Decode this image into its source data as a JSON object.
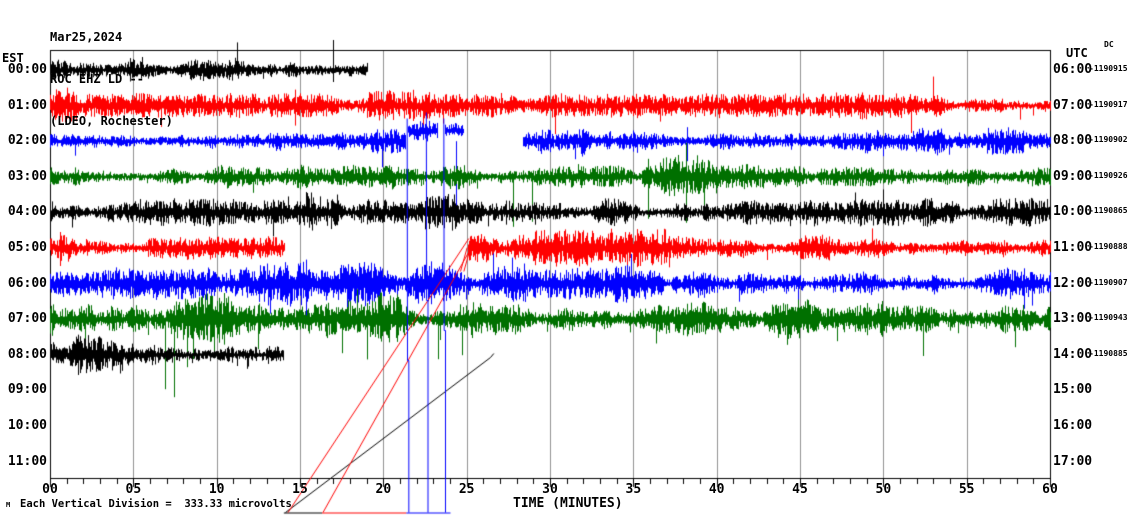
{
  "chart_data": {
    "type": "line",
    "subtype": "helicorder-seismogram",
    "title_lines": [
      "Mar25,2024",
      "ROC EHZ LD --",
      "(LDEO, Rochester)"
    ],
    "xlabel": "TIME (MINUTES)",
    "x_range_minutes": [
      0,
      60
    ],
    "x_major_tick_interval": 5,
    "x_minor_tick_interval": 1,
    "x_tick_labels": [
      "00",
      "05",
      "10",
      "15",
      "20",
      "25",
      "30",
      "35",
      "40",
      "45",
      "50",
      "55",
      "60"
    ],
    "left_axis": {
      "header": "EST"
    },
    "right_axis": {
      "header": "UTC",
      "sub_header": "DC"
    },
    "scale_note": "Each Vertical Division =  333.33 microvolts",
    "footer_marker": "M",
    "colors": {
      "grid": "#909090",
      "axis": "#000000",
      "background": "#ffffff",
      "trace_cycle": [
        "#000000",
        "#ff0000",
        "#0000ff",
        "#007000"
      ]
    },
    "rows": [
      {
        "est": "00:00",
        "utc": "06:00",
        "dc": "-1190915",
        "color": "#000000",
        "segments": [
          {
            "s": 0,
            "e": 19.0,
            "amp": 8,
            "sp": 0.01,
            "spm": 2.0
          }
        ],
        "bursts": [
          {
            "s": 0,
            "e": 1.2,
            "m": 1.3
          }
        ],
        "spikes": [
          {
            "m": 16.95,
            "up": 30,
            "down": 12
          },
          {
            "m": 5.5,
            "up": 13,
            "down": 6
          },
          {
            "m": 9.2,
            "up": 6,
            "down": 11
          }
        ]
      },
      {
        "est": "01:00",
        "utc": "07:00",
        "dc": "-1190917",
        "color": "#ff0000",
        "segments": [
          {
            "s": 0,
            "e": 60,
            "amp": 7,
            "sp": 0.012,
            "spm": 2.4
          }
        ],
        "bursts": [
          {
            "s": 0,
            "e": 1.6,
            "m": 1.6
          },
          {
            "s": 19,
            "e": 24,
            "m": 1.25
          },
          {
            "s": 47,
            "e": 49,
            "m": 1.2
          }
        ],
        "spikes": [
          {
            "m": 1.0,
            "up": 18,
            "down": 8
          },
          {
            "m": 14.7,
            "up": 16,
            "down": 20
          },
          {
            "m": 22.4,
            "down": 24
          },
          {
            "m": 23.6,
            "down": 18
          },
          {
            "m": 36.6,
            "down": 16
          },
          {
            "m": 58.2,
            "down": 14
          }
        ]
      },
      {
        "est": "02:00",
        "utc": "08:00",
        "dc": "-1190902",
        "color": "#0000ff",
        "segments": [
          {
            "s": 0,
            "e": 21.3,
            "amp": 7,
            "sp": 0.008,
            "spm": 2.0
          },
          {
            "s": 21.45,
            "e": 23.2,
            "amp": 6,
            "off": -10,
            "sp": 0.01,
            "spm": 1.5
          },
          {
            "s": 23.7,
            "e": 24.75,
            "amp": 6,
            "off": -11
          },
          {
            "s": 28.35,
            "e": 60,
            "amp": 8,
            "sp": 0.01,
            "spm": 2.0
          }
        ],
        "bursts": [
          {
            "s": 33.3,
            "e": 34.6,
            "m": 1.3
          },
          {
            "s": 44,
            "e": 46,
            "m": 1.2
          }
        ],
        "spikes": [
          {
            "m": 19.9,
            "down": 26
          },
          {
            "m": 24.35,
            "down": 72
          },
          {
            "m": 31.5,
            "down": 18
          },
          {
            "m": 38.2,
            "up": 14,
            "down": 20
          },
          {
            "m": 50.0,
            "down": 15
          }
        ]
      },
      {
        "est": "03:00",
        "utc": "09:00",
        "dc": "-1190926",
        "color": "#007000",
        "segments": [
          {
            "s": 0,
            "e": 60,
            "amp": 7,
            "sp": 0.01,
            "spm": 2.0
          }
        ],
        "bursts": [
          {
            "s": 0,
            "e": 2,
            "m": 1.3
          },
          {
            "s": 35.5,
            "e": 40,
            "m": 1.9
          },
          {
            "s": 55,
            "e": 57,
            "m": 1.2
          }
        ],
        "spikes": [
          {
            "m": 35.9,
            "up": 18,
            "down": 42
          },
          {
            "m": 38.15,
            "up": 34,
            "down": 46
          },
          {
            "m": 39.25,
            "down": 30
          },
          {
            "m": 12.2,
            "down": 16
          },
          {
            "m": 27.8,
            "down": 50
          },
          {
            "m": 28.9,
            "down": 45
          }
        ]
      },
      {
        "est": "04:00",
        "utc": "10:00",
        "dc": "-1190865",
        "color": "#000000",
        "segments": [
          {
            "s": 0,
            "e": 60,
            "amp": 8,
            "sp": 0.008,
            "spm": 1.8
          }
        ],
        "bursts": [
          {
            "s": 12.8,
            "e": 17.3,
            "m": 1.8
          },
          {
            "s": 22.5,
            "e": 24.5,
            "m": 1.3
          },
          {
            "s": 29,
            "e": 31,
            "m": 1.25
          },
          {
            "s": 37.5,
            "e": 38.5,
            "m": 1.3
          }
        ],
        "spikes": [
          {
            "m": 13.4,
            "down": 24
          },
          {
            "m": 16.2,
            "up": 16
          },
          {
            "m": 26.3,
            "down": 14
          },
          {
            "m": 57.0,
            "up": 14
          }
        ]
      },
      {
        "est": "05:00",
        "utc": "11:00",
        "dc": "-1190888",
        "color": "#ff0000",
        "segments": [
          {
            "s": 0,
            "e": 14.05,
            "amp": 7,
            "sp": 0.008,
            "spm": 1.6
          },
          {
            "s": 25.1,
            "e": 60,
            "amp": 8,
            "sp": 0.012,
            "spm": 2.2
          }
        ],
        "bursts": [
          {
            "s": 0,
            "e": 1.2,
            "m": 1.5
          },
          {
            "s": 25.1,
            "e": 27.5,
            "m": 1.6
          },
          {
            "s": 29,
            "e": 37,
            "m": 1.35
          }
        ],
        "spikes": [
          {
            "m": 0.6,
            "up": 16,
            "down": 18
          },
          {
            "m": 25.6,
            "up": 12,
            "down": 14
          },
          {
            "m": 43.0,
            "down": 12
          }
        ]
      },
      {
        "est": "06:00",
        "utc": "12:00",
        "dc": "-1190907",
        "color": "#0000ff",
        "segments": [
          {
            "s": 0,
            "e": 60,
            "amp": 9,
            "sp": 0.012,
            "spm": 2.0
          }
        ],
        "bursts": [
          {
            "s": 12.5,
            "e": 24,
            "m": 1.5
          },
          {
            "s": 26,
            "e": 28.5,
            "m": 1.3
          },
          {
            "s": 33,
            "e": 35,
            "m": 1.2
          },
          {
            "s": 50.5,
            "e": 53,
            "m": 1.25
          }
        ],
        "spikes": [
          {
            "m": 13.2,
            "down": 30
          },
          {
            "m": 15.35,
            "up": 24,
            "down": 34
          },
          {
            "m": 17.8,
            "down": 42
          },
          {
            "m": 19.45,
            "up": 20,
            "down": 18
          },
          {
            "m": 20.8,
            "down": 26
          },
          {
            "m": 22.1,
            "down": 20
          },
          {
            "m": 26.6,
            "up": 30
          },
          {
            "m": 27.7,
            "up": 26
          },
          {
            "m": 44.9,
            "down": 20
          },
          {
            "m": 58.9,
            "down": 22
          }
        ]
      },
      {
        "est": "07:00",
        "utc": "13:00",
        "dc": "-1190943",
        "color": "#007000",
        "segments": [
          {
            "s": 0,
            "e": 60,
            "amp": 11,
            "sp": 0.015,
            "spm": 2.0
          }
        ],
        "bursts": [
          {
            "s": 0,
            "e": 22,
            "m": 1.35
          },
          {
            "s": 30,
            "e": 33,
            "m": 1.1
          },
          {
            "s": 56,
            "e": 58.5,
            "m": 1.2
          }
        ],
        "spikes": [
          {
            "m": 2.1,
            "down": 25
          },
          {
            "m": 6.9,
            "down": 70
          },
          {
            "m": 7.45,
            "down": 78
          },
          {
            "m": 8.2,
            "down": 48
          },
          {
            "m": 12.5,
            "down": 30
          },
          {
            "m": 17.5,
            "down": 34
          },
          {
            "m": 23.3,
            "down": 40
          },
          {
            "m": 24.7,
            "down": 36
          },
          {
            "m": 47.2,
            "down": 22
          },
          {
            "m": 57.9,
            "down": 28
          }
        ]
      },
      {
        "est": "08:00",
        "utc": "14:00",
        "dc": "-1190885",
        "color": "#000000",
        "segments": [
          {
            "s": 0,
            "e": 14.0,
            "amp": 10,
            "sp": 0.01,
            "spm": 1.7
          }
        ],
        "bursts": [
          {
            "s": 0,
            "e": 5,
            "m": 1.25
          }
        ],
        "spikes": [
          {
            "m": 2.6,
            "up": 14
          },
          {
            "m": 4.3,
            "down": 16
          },
          {
            "m": 11.8,
            "down": 14
          }
        ]
      },
      {
        "est": "09:00",
        "utc": "15:00",
        "dc": null,
        "color": "#ff0000",
        "segments": [],
        "bursts": [],
        "spikes": []
      },
      {
        "est": "10:00",
        "utc": "16:00",
        "dc": null,
        "color": "#0000ff",
        "segments": [],
        "bursts": [],
        "spikes": []
      },
      {
        "est": "11:00",
        "utc": "17:00",
        "dc": null,
        "color": "#007000",
        "segments": [],
        "bursts": [],
        "spikes": []
      }
    ],
    "artifacts": [
      {
        "color": "#000000",
        "pts": [
          [
            14.0,
            512.5
          ],
          [
            16.3,
            512.5
          ]
        ]
      },
      {
        "color": "#000000",
        "pts": [
          [
            14.1,
            512
          ],
          [
            26.4,
            357
          ],
          [
            26.6,
            353
          ]
        ]
      },
      {
        "color": "#ff0000",
        "pts": [
          [
            16.3,
            512.5
          ],
          [
            21.35,
            512.5
          ]
        ]
      },
      {
        "color": "#ff0000",
        "pts": [
          [
            14.25,
            512
          ],
          [
            25.1,
            238
          ]
        ]
      },
      {
        "color": "#ff0000",
        "pts": [
          [
            16.35,
            512
          ],
          [
            25.35,
            244
          ]
        ]
      },
      {
        "color": "#ff0000",
        "pts": [
          [
            24.6,
            271
          ],
          [
            25.0,
            247
          ]
        ]
      },
      {
        "color": "#ff0000",
        "pts": [
          [
            24.8,
            271
          ],
          [
            25.2,
            247
          ]
        ]
      },
      {
        "color": "#0000ff",
        "pts": [
          [
            21.35,
            512.5
          ],
          [
            24.0,
            512.5
          ]
        ]
      },
      {
        "color": "#0000ff",
        "pts": [
          [
            21.4,
            118
          ],
          [
            21.42,
            360
          ],
          [
            21.5,
            360
          ],
          [
            21.5,
            512
          ]
        ]
      },
      {
        "color": "#0000ff",
        "pts": [
          [
            22.55,
            112
          ],
          [
            22.57,
            300
          ],
          [
            22.65,
            300
          ],
          [
            22.65,
            512
          ]
        ]
      },
      {
        "color": "#0000ff",
        "pts": [
          [
            23.6,
            118
          ],
          [
            23.62,
            330
          ],
          [
            23.7,
            330
          ],
          [
            23.7,
            512
          ]
        ]
      }
    ]
  }
}
